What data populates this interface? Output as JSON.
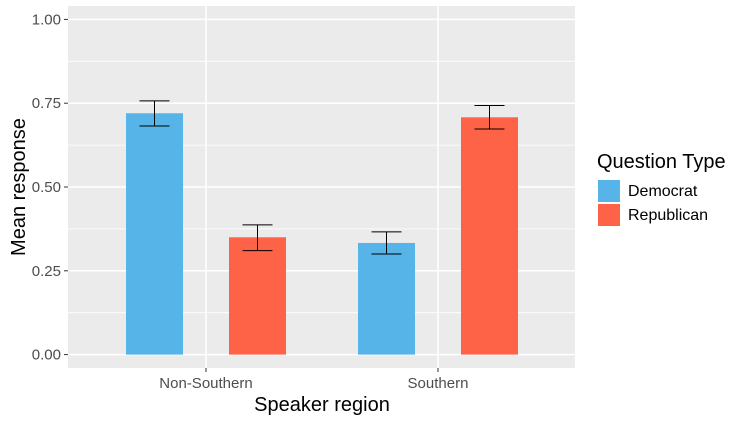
{
  "chart_data": {
    "type": "bar",
    "categories": [
      "Non-Southern",
      "Southern"
    ],
    "series": [
      {
        "name": "Democrat",
        "color": "#56B4E9",
        "values": [
          0.72,
          0.333
        ],
        "error_low": [
          0.682,
          0.3
        ],
        "error_high": [
          0.757,
          0.366
        ]
      },
      {
        "name": "Republican",
        "color": "#FF6347",
        "values": [
          0.35,
          0.708
        ],
        "error_low": [
          0.31,
          0.673
        ],
        "error_high": [
          0.387,
          0.743
        ]
      }
    ],
    "title": "",
    "xlabel": "Speaker region",
    "ylabel": "Mean response",
    "ylim": [
      -0.04,
      1.04
    ],
    "yticks": [
      0,
      0.25,
      0.5,
      0.75,
      1
    ],
    "ytick_labels": [
      "0.00",
      "0.25",
      "0.50",
      "0.75",
      "1.00"
    ],
    "grid": true,
    "panel_background": "#EBEBEB",
    "legend": {
      "title": "Question Type",
      "position": "right"
    }
  }
}
